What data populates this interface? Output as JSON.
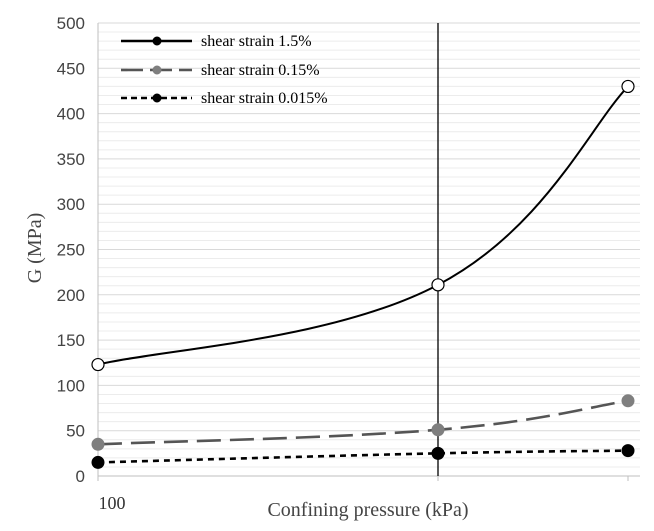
{
  "chart_data": {
    "type": "line",
    "xlabel": "Confining pressure (kPa)",
    "ylabel": "G (MPa)",
    "x_tick_labels": [
      "100"
    ],
    "ylim": [
      0,
      500
    ],
    "yticks": [
      0,
      50,
      100,
      150,
      200,
      250,
      300,
      350,
      400,
      450,
      500
    ],
    "x_positions": [
      0,
      1,
      1.55
    ],
    "grid": true,
    "legend_position": "top-left",
    "series": [
      {
        "name": "shear strain 1.5%",
        "values": [
          123,
          211,
          430
        ],
        "color": "#000000",
        "line_style": "solid",
        "marker": "open-circle"
      },
      {
        "name": "shear strain 0.15%",
        "values": [
          35,
          51,
          83
        ],
        "color": "#555555",
        "line_style": "long-dash",
        "marker": "filled-circle-gray"
      },
      {
        "name": "shear strain 0.015%",
        "values": [
          15,
          25,
          28
        ],
        "color": "#000000",
        "line_style": "short-dash",
        "marker": "filled-circle"
      }
    ]
  }
}
